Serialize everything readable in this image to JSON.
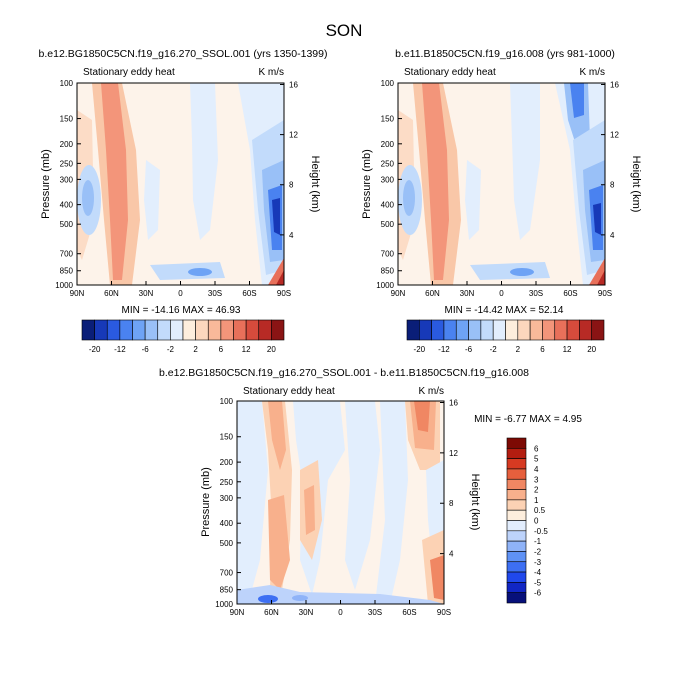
{
  "page": {
    "title": "SON"
  },
  "palette_top": [
    "#0a1e78",
    "#1739b8",
    "#2a5ae0",
    "#4a82f0",
    "#6ea3f5",
    "#99c0f7",
    "#c2dbfb",
    "#e2eefd",
    "#fdeedd",
    "#fcd7bd",
    "#f9b99a",
    "#f3957a",
    "#e8705a",
    "#d64b3c",
    "#b72a25",
    "#8a1414"
  ],
  "palette_diff": [
    "#07107a",
    "#1126c4",
    "#2048ec",
    "#3d6ff3",
    "#5f92f6",
    "#8fb3f8",
    "#bdd3fb",
    "#e2edfd",
    "#fdeedd",
    "#fcd2b4",
    "#f8b08c",
    "#f08763",
    "#e65f3d",
    "#d63a22",
    "#b31d10",
    "#7d0a04"
  ],
  "chart_data": [
    {
      "type": "heatmap",
      "title": "b.e12.BG1850C5CN.f19_g16.270_SSOL.001 (yrs 1350-1399)",
      "variable_label": "Stationary eddy heat",
      "units": "K m/s",
      "xlabel": "",
      "ylabel": "Pressure (mb)",
      "ylabel_right": "Height (km)",
      "x_ticks": [
        "90N",
        "60N",
        "30N",
        "0",
        "30S",
        "60S",
        "90S"
      ],
      "y_ticks": [
        "100",
        "150",
        "200",
        "250",
        "300",
        "400",
        "500",
        "700",
        "850",
        "1000"
      ],
      "y_ticks_right": [
        "16",
        "12",
        "8",
        "4"
      ],
      "minmax_text": "MIN = -14.16  MAX = 46.93",
      "min": -14.16,
      "max": 46.93
    },
    {
      "type": "heatmap",
      "title": "b.e11.B1850C5CN.f19_g16.008 (yrs 981-1000)",
      "variable_label": "Stationary eddy heat",
      "units": "K m/s",
      "xlabel": "",
      "ylabel": "Pressure (mb)",
      "ylabel_right": "Height (km)",
      "x_ticks": [
        "90N",
        "60N",
        "30N",
        "0",
        "30S",
        "60S",
        "90S"
      ],
      "y_ticks": [
        "100",
        "150",
        "200",
        "250",
        "300",
        "400",
        "500",
        "700",
        "850",
        "1000"
      ],
      "y_ticks_right": [
        "16",
        "12",
        "8",
        "4"
      ],
      "minmax_text": "MIN = -14.42  MAX =  52.14",
      "min": -14.42,
      "max": 52.14
    },
    {
      "type": "heatmap",
      "title": "b.e12.BG1850C5CN.f19_g16.270_SSOL.001 - b.e11.B1850C5CN.f19_g16.008",
      "variable_label": "Stationary eddy heat",
      "units": "K m/s",
      "xlabel": "",
      "ylabel": "Pressure (mb)",
      "ylabel_right": "Height (km)",
      "x_ticks": [
        "90N",
        "60N",
        "30N",
        "0",
        "30S",
        "60S",
        "90S"
      ],
      "y_ticks": [
        "100",
        "150",
        "200",
        "250",
        "300",
        "400",
        "500",
        "700",
        "850",
        "1000"
      ],
      "y_ticks_right": [
        "16",
        "12",
        "8",
        "4"
      ],
      "minmax_text": "MIN = -6.77  MAX =  4.95",
      "min": -6.77,
      "max": 4.95
    }
  ],
  "colorbar_top": {
    "labels": [
      "-20",
      "-12",
      "-6",
      "-2",
      "2",
      "6",
      "12",
      "20"
    ]
  },
  "colorbar_diff": {
    "labels": [
      "6",
      "5",
      "4",
      "3",
      "2",
      "1",
      "0.5",
      "0",
      "-0.5",
      "-1",
      "-2",
      "-3",
      "-4",
      "-5",
      "-6"
    ]
  }
}
